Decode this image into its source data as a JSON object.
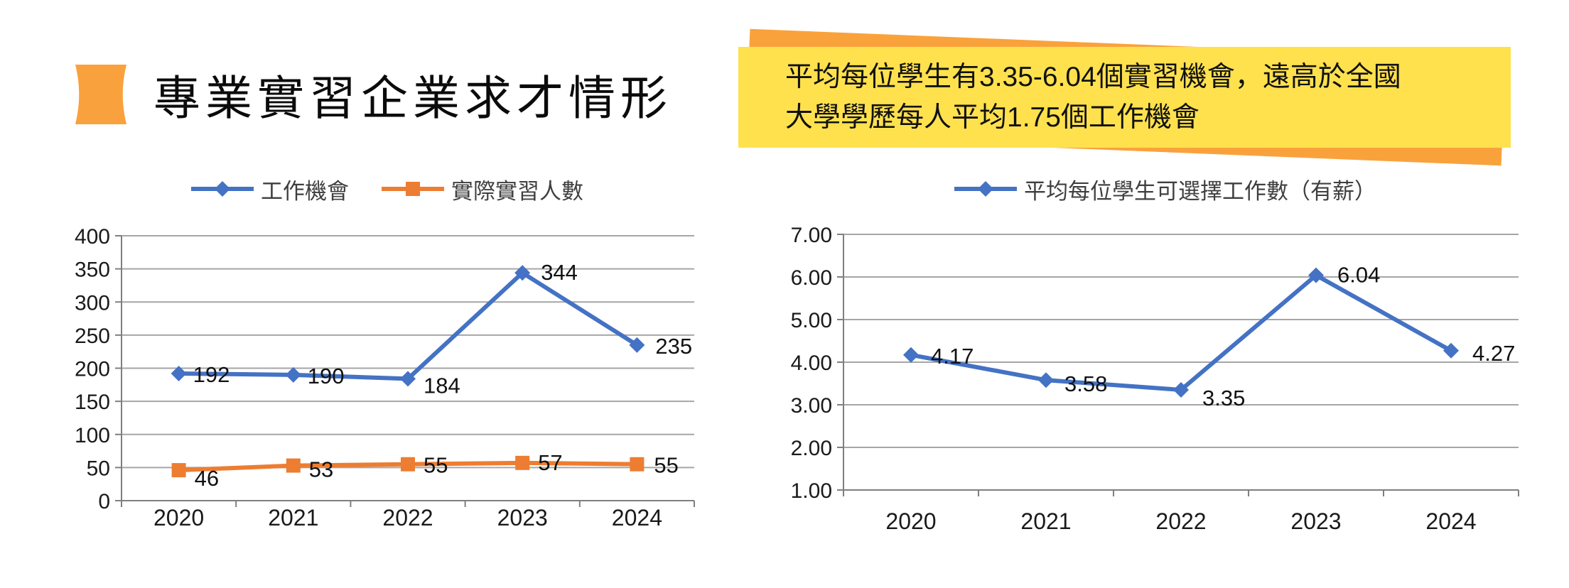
{
  "header": {
    "title": "專業實習企業求才情形",
    "icon_color": "#F9A13C"
  },
  "callout": {
    "line1": "平均每位學生有3.35-6.04個實習機會，遠高於全國",
    "line2": "大學學歷每人平均1.75個工作機會",
    "bg_color": "#FFE14D",
    "accent_color": "#F9A23C"
  },
  "colors": {
    "series_blue": "#4472C4",
    "series_orange": "#ED7D31",
    "gridline": "#A6A6A6",
    "axis": "#7F7F7F",
    "label": "#111111"
  },
  "chart_data": [
    {
      "type": "line",
      "title": "",
      "categories": [
        "2020",
        "2021",
        "2022",
        "2023",
        "2024"
      ],
      "series": [
        {
          "name": "工作機會",
          "marker": "diamond",
          "color": "#4472C4",
          "values": [
            192,
            190,
            184,
            344,
            235
          ]
        },
        {
          "name": "實際實習人數",
          "marker": "square",
          "color": "#ED7D31",
          "values": [
            46,
            53,
            55,
            57,
            55
          ]
        }
      ],
      "ylim": [
        0,
        400
      ],
      "ytick_step": 50,
      "ytick_format": "int",
      "grid": true,
      "legend_position": "top",
      "data_labels": true
    },
    {
      "type": "line",
      "title": "",
      "categories": [
        "2020",
        "2021",
        "2022",
        "2023",
        "2024"
      ],
      "series": [
        {
          "name": "平均每位學生可選擇工作數（有薪）",
          "marker": "diamond",
          "color": "#4472C4",
          "values": [
            4.17,
            3.58,
            3.35,
            6.04,
            4.27
          ]
        }
      ],
      "ylim": [
        1,
        7
      ],
      "ytick_step": 1,
      "ytick_format": "2dp",
      "grid": true,
      "legend_position": "top",
      "data_labels": true
    }
  ]
}
